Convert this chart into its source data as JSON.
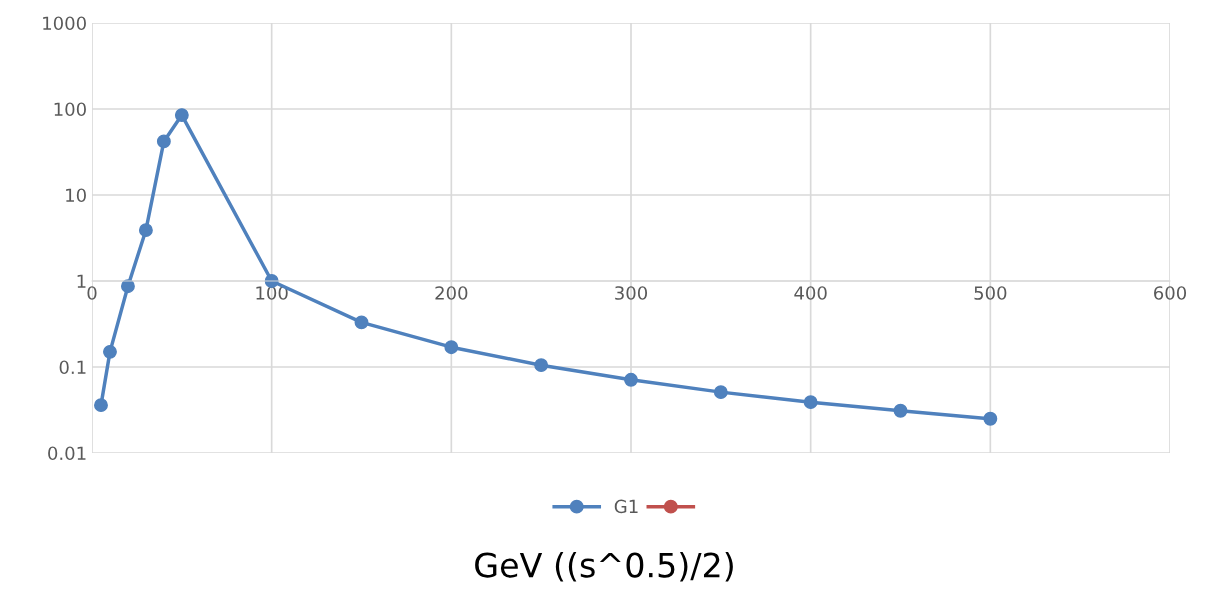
{
  "chart_data": {
    "type": "line",
    "xlabel": "GeV ((s^0.5)/2)",
    "x": [
      5,
      10,
      20,
      30,
      40,
      50,
      100,
      150,
      200,
      250,
      300,
      350,
      400,
      450,
      500
    ],
    "series": [
      {
        "name": "G1",
        "color": "#4f81bd",
        "values": [
          0.036,
          0.15,
          0.87,
          3.9,
          42,
          85,
          1.0,
          0.33,
          0.17,
          0.105,
          0.071,
          0.051,
          0.039,
          0.031,
          0.025
        ]
      },
      {
        "color": "#c0504d",
        "values": [
          null,
          null,
          null,
          null,
          null,
          null,
          null,
          null,
          null,
          null,
          null,
          null,
          null,
          null,
          null
        ]
      }
    ],
    "log": "y",
    "xlim": [
      0,
      600
    ],
    "xticks": [
      0,
      100,
      200,
      300,
      400,
      500,
      600
    ],
    "ylim": [
      0.01,
      1000
    ],
    "yticks": [
      {
        "value": 0.01,
        "label": "0.01"
      },
      {
        "value": 0.1,
        "label": "0.1"
      },
      1,
      10,
      100,
      1000
    ],
    "grid": true,
    "legend": "bottom",
    "marker": "circle",
    "line_style": "solid"
  }
}
